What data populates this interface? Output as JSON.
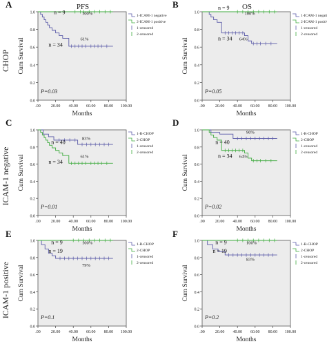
{
  "column_titles": [
    "PFS",
    "OS"
  ],
  "row_labels": [
    "CHOP",
    "ICAM-1  negative",
    "ICAM-1  positive"
  ],
  "chart_data": [
    {
      "type": "line",
      "panel": "A",
      "endpoint": "PFS",
      "row": "CHOP",
      "xlabel": "Months",
      "ylabel": "Cum Survival",
      "xlim": [
        0,
        100
      ],
      "ylim": [
        0.0,
        1.0
      ],
      "x_ticks": [
        ".00",
        "20.00",
        "40.00",
        "60.00",
        "80.00",
        "100.00"
      ],
      "y_ticks": [
        "0.0",
        "0.2",
        "0.4",
        "0.6",
        "0.8",
        "1.0"
      ],
      "legend": [
        "1-ICAM-1 negative",
        "2-ICAM-1 positive",
        "1-censored",
        "2-censored"
      ],
      "p_value": "P=0.03",
      "series": [
        {
          "color": "#5a5aa8",
          "n_label": "n = 34",
          "pct_label": "61%",
          "x": [
            0,
            3,
            5,
            7,
            9,
            11,
            13,
            16,
            20,
            24,
            28,
            35,
            85
          ],
          "y": [
            1.0,
            0.97,
            0.94,
            0.91,
            0.88,
            0.85,
            0.82,
            0.79,
            0.76,
            0.73,
            0.7,
            0.61,
            0.61
          ],
          "censored_x": [
            38,
            42,
            46,
            50,
            54,
            60,
            64,
            68,
            72,
            78
          ]
        },
        {
          "color": "#3daa3d",
          "n_label": "n = 9",
          "pct_label": "100%",
          "x": [
            0,
            85
          ],
          "y": [
            1.0,
            1.0
          ],
          "censored_x": [
            42,
            48,
            52,
            58,
            64,
            70,
            76,
            82
          ]
        }
      ]
    },
    {
      "type": "line",
      "panel": "B",
      "endpoint": "OS",
      "row": "CHOP",
      "xlabel": "Months",
      "ylabel": "Cum Survival",
      "xlim": [
        0,
        100
      ],
      "ylim": [
        0.0,
        1.0
      ],
      "x_ticks": [
        ".00",
        "20.00",
        "40.00",
        "60.00",
        "80.00",
        "100.00"
      ],
      "y_ticks": [
        "0.0",
        "0.2",
        "0.4",
        "0.6",
        "0.8",
        "1.0"
      ],
      "legend": [
        "1-ICAM-1 negative",
        "2-ICAM-1 positive",
        "1-censored",
        "2-censored"
      ],
      "p_value": "P=0.05",
      "series": [
        {
          "color": "#5a5aa8",
          "n_label": "n = 34",
          "pct_label": "64%",
          "x": [
            0,
            8,
            10,
            13,
            17,
            22,
            48,
            52,
            56,
            85
          ],
          "y": [
            1.0,
            0.97,
            0.94,
            0.91,
            0.88,
            0.76,
            0.73,
            0.67,
            0.64,
            0.64
          ],
          "censored_x": [
            26,
            30,
            34,
            38,
            42,
            46,
            58,
            62,
            66,
            72,
            78
          ]
        },
        {
          "color": "#3daa3d",
          "n_label": "n = 9",
          "pct_label": "100%",
          "x": [
            0,
            85
          ],
          "y": [
            1.0,
            1.0
          ],
          "censored_x": [
            40,
            46,
            52,
            58,
            64,
            70,
            76,
            82
          ]
        }
      ]
    },
    {
      "type": "line",
      "panel": "C",
      "endpoint": "PFS",
      "row": "ICAM-1  negative",
      "xlabel": "Months",
      "ylabel": "Cum Survival",
      "xlim": [
        0,
        100
      ],
      "ylim": [
        0.0,
        1.0
      ],
      "x_ticks": [
        ".00",
        "20.00",
        "40.00",
        "60.00",
        "80.00",
        "100.00"
      ],
      "y_ticks": [
        "0.0",
        "0.2",
        "0.4",
        "0.6",
        "0.8",
        "1.0"
      ],
      "legend": [
        "1-R-CHOP",
        "2-CHOP",
        "1-censored",
        "2-censored"
      ],
      "p_value": "P=0.01",
      "series": [
        {
          "color": "#5a5aa8",
          "n_label": "n = 40",
          "pct_label": "83%",
          "x": [
            0,
            6,
            12,
            18,
            45,
            85
          ],
          "y": [
            1.0,
            0.95,
            0.92,
            0.88,
            0.83,
            0.83
          ],
          "censored_x": [
            24,
            30,
            36,
            42,
            50,
            55,
            60,
            65,
            70,
            75,
            80
          ]
        },
        {
          "color": "#3daa3d",
          "n_label": "n = 34",
          "pct_label": "61%",
          "x": [
            0,
            3,
            5,
            7,
            9,
            11,
            13,
            16,
            20,
            24,
            28,
            35,
            85
          ],
          "y": [
            1.0,
            0.97,
            0.94,
            0.91,
            0.88,
            0.85,
            0.82,
            0.79,
            0.76,
            0.73,
            0.7,
            0.61,
            0.61
          ],
          "censored_x": [
            38,
            42,
            46,
            50,
            54,
            60,
            64,
            68,
            72,
            78
          ]
        }
      ]
    },
    {
      "type": "line",
      "panel": "D",
      "endpoint": "OS",
      "row": "ICAM-1  negative",
      "xlabel": "Months",
      "ylabel": "Cum Survival",
      "xlim": [
        0,
        100
      ],
      "ylim": [
        0.0,
        1.0
      ],
      "x_ticks": [
        ".00",
        "20.00",
        "40.00",
        "60.00",
        "80.00",
        "100.00"
      ],
      "y_ticks": [
        "0.0",
        "0.2",
        "0.4",
        "0.6",
        "0.8",
        "1.0"
      ],
      "legend": [
        "1-R-CHOP",
        "2-CHOP",
        "1-censored",
        "2-censored"
      ],
      "p_value": "P=0.02",
      "series": [
        {
          "color": "#5a5aa8",
          "n_label": "n = 40",
          "pct_label": "90%",
          "x": [
            0,
            10,
            20,
            35,
            85
          ],
          "y": [
            1.0,
            0.97,
            0.95,
            0.9,
            0.9
          ],
          "censored_x": [
            40,
            45,
            50,
            55,
            60,
            65,
            70,
            75,
            80
          ]
        },
        {
          "color": "#3daa3d",
          "n_label": "n = 34",
          "pct_label": "64%",
          "x": [
            0,
            8,
            10,
            13,
            17,
            22,
            48,
            52,
            56,
            85
          ],
          "y": [
            1.0,
            0.97,
            0.94,
            0.91,
            0.88,
            0.76,
            0.73,
            0.67,
            0.64,
            0.64
          ],
          "censored_x": [
            26,
            30,
            34,
            38,
            42,
            46,
            58,
            62,
            66,
            72,
            78
          ]
        }
      ]
    },
    {
      "type": "line",
      "panel": "E",
      "endpoint": "PFS",
      "row": "ICAM-1  positive",
      "xlabel": "Months",
      "ylabel": "Cum Survival",
      "xlim": [
        0,
        100
      ],
      "ylim": [
        0.0,
        1.0
      ],
      "x_ticks": [
        ".00",
        "20.00",
        "40.00",
        "60.00",
        "80.00",
        "100.00"
      ],
      "y_ticks": [
        "0.0",
        "0.2",
        "0.4",
        "0.6",
        "0.8",
        "1.0"
      ],
      "legend": [
        "1-R-CHOP",
        "2-CHOP",
        "1-censored",
        "2-censored"
      ],
      "p_value": "P=0.1",
      "series": [
        {
          "color": "#5a5aa8",
          "n_label": "n = 19",
          "pct_label": "79%",
          "x": [
            0,
            4,
            8,
            12,
            16,
            20,
            85
          ],
          "y": [
            1.0,
            0.95,
            0.9,
            0.85,
            0.82,
            0.79,
            0.79
          ],
          "censored_x": [
            25,
            30,
            35,
            40,
            45,
            50,
            55,
            60,
            65,
            70,
            75,
            80
          ]
        },
        {
          "color": "#3daa3d",
          "n_label": "n = 9",
          "pct_label": "100%",
          "x": [
            0,
            85
          ],
          "y": [
            1.0,
            1.0
          ],
          "censored_x": [
            40,
            46,
            52,
            58,
            64,
            70,
            76,
            82
          ]
        }
      ]
    },
    {
      "type": "line",
      "panel": "F",
      "endpoint": "OS",
      "row": "ICAM-1  positive",
      "xlabel": "Months",
      "ylabel": "Cum Survival",
      "xlim": [
        0,
        100
      ],
      "ylim": [
        0.0,
        1.0
      ],
      "x_ticks": [
        ".00",
        "20.00",
        "40.00",
        "60.00",
        "80.00",
        "100.00"
      ],
      "y_ticks": [
        "0.0",
        "0.2",
        "0.4",
        "0.6",
        "0.8",
        "1.0"
      ],
      "legend": [
        "1-R-CHOP",
        "2-CHOP",
        "1-censored",
        "2-censored"
      ],
      "p_value": "P=0.2",
      "series": [
        {
          "color": "#5a5aa8",
          "n_label": "n = 19",
          "pct_label": "83%",
          "x": [
            0,
            6,
            12,
            18,
            26,
            85
          ],
          "y": [
            1.0,
            0.95,
            0.9,
            0.87,
            0.83,
            0.83
          ],
          "censored_x": [
            30,
            35,
            40,
            45,
            50,
            55,
            60,
            65,
            70,
            75,
            80
          ]
        },
        {
          "color": "#3daa3d",
          "n_label": "n = 9",
          "pct_label": "100%",
          "x": [
            0,
            85
          ],
          "y": [
            1.0,
            1.0
          ],
          "censored_x": [
            40,
            46,
            52,
            58,
            64,
            70,
            76,
            82
          ]
        }
      ]
    }
  ]
}
